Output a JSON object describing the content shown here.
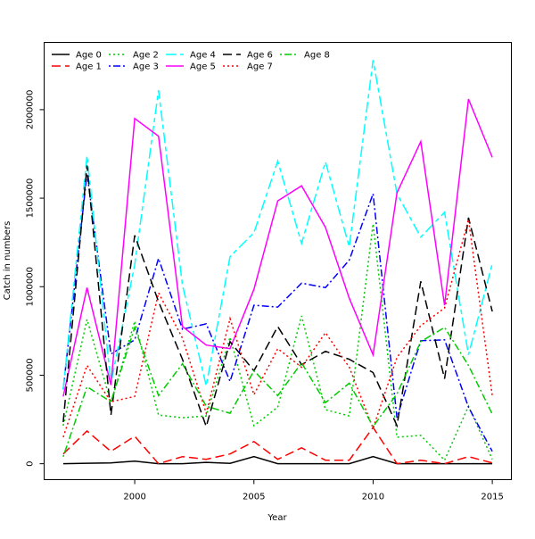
{
  "chart_data": {
    "type": "line",
    "title": "",
    "xlabel": "Year",
    "ylabel": "Catch in numbers",
    "xlim": [
      1996.2,
      2015.8
    ],
    "ylim": [
      -90000,
      2380000
    ],
    "x_ticks": [
      2000,
      2005,
      2010,
      2015
    ],
    "y_ticks": [
      0,
      500000,
      1000000,
      1500000,
      2000000
    ],
    "legend_position": "top-left",
    "x": [
      1997,
      1998,
      1999,
      2000,
      2001,
      2002,
      2003,
      2004,
      2005,
      2006,
      2007,
      2008,
      2009,
      2010,
      2011,
      2012,
      2013,
      2014,
      2015
    ],
    "series": [
      {
        "name": "Age 0",
        "color": "#000000",
        "dash": "solid",
        "values": [
          0,
          3000,
          5000,
          15000,
          0,
          0,
          8000,
          2000,
          40000,
          0,
          0,
          0,
          0,
          40000,
          0,
          0,
          0,
          0,
          0
        ]
      },
      {
        "name": "Age 1",
        "color": "#ff0000",
        "dash": "longdash",
        "values": [
          55000,
          185000,
          70000,
          155000,
          0,
          40000,
          25000,
          55000,
          125000,
          25000,
          90000,
          20000,
          20000,
          205000,
          0,
          20000,
          0,
          40000,
          5000
        ]
      },
      {
        "name": "Age 2",
        "color": "#00cc00",
        "dash": "dotted",
        "values": [
          215000,
          815000,
          345000,
          805000,
          275000,
          260000,
          270000,
          715000,
          215000,
          320000,
          835000,
          305000,
          270000,
          1355000,
          150000,
          160000,
          20000,
          325000,
          25000
        ]
      },
      {
        "name": "Age 3",
        "color": "#0000ff",
        "dash": "dotdash",
        "values": [
          420000,
          1640000,
          620000,
          700000,
          1160000,
          760000,
          790000,
          465000,
          895000,
          885000,
          1020000,
          995000,
          1150000,
          1525000,
          260000,
          695000,
          700000,
          320000,
          70000
        ]
      },
      {
        "name": "Age 4",
        "color": "#00ffff",
        "dash": "twodash",
        "values": [
          420000,
          1740000,
          455000,
          1125000,
          2110000,
          1010000,
          440000,
          1170000,
          1305000,
          1710000,
          1245000,
          1705000,
          1225000,
          2280000,
          1525000,
          1280000,
          1420000,
          615000,
          1130000
        ]
      },
      {
        "name": "Age 5",
        "color": "#ff00ff",
        "dash": "solid",
        "values": [
          380000,
          995000,
          445000,
          1950000,
          1850000,
          775000,
          670000,
          650000,
          985000,
          1485000,
          1570000,
          1335000,
          935000,
          615000,
          1530000,
          1820000,
          895000,
          2060000,
          1730000
        ]
      },
      {
        "name": "Age 6",
        "color": "#000000",
        "dash": "longdash",
        "values": [
          235000,
          1685000,
          275000,
          1290000,
          915000,
          590000,
          210000,
          690000,
          525000,
          775000,
          560000,
          635000,
          590000,
          515000,
          215000,
          1030000,
          480000,
          1390000,
          860000
        ]
      },
      {
        "name": "Age 7",
        "color": "#ff0000",
        "dash": "dotted",
        "values": [
          150000,
          555000,
          350000,
          380000,
          965000,
          710000,
          285000,
          820000,
          390000,
          650000,
          545000,
          740000,
          545000,
          200000,
          600000,
          780000,
          880000,
          1380000,
          385000
        ]
      },
      {
        "name": "Age 8",
        "color": "#00cc00",
        "dash": "dotdash",
        "values": [
          40000,
          435000,
          350000,
          770000,
          385000,
          565000,
          325000,
          285000,
          525000,
          385000,
          570000,
          345000,
          455000,
          210000,
          395000,
          690000,
          770000,
          555000,
          280000
        ]
      }
    ]
  }
}
